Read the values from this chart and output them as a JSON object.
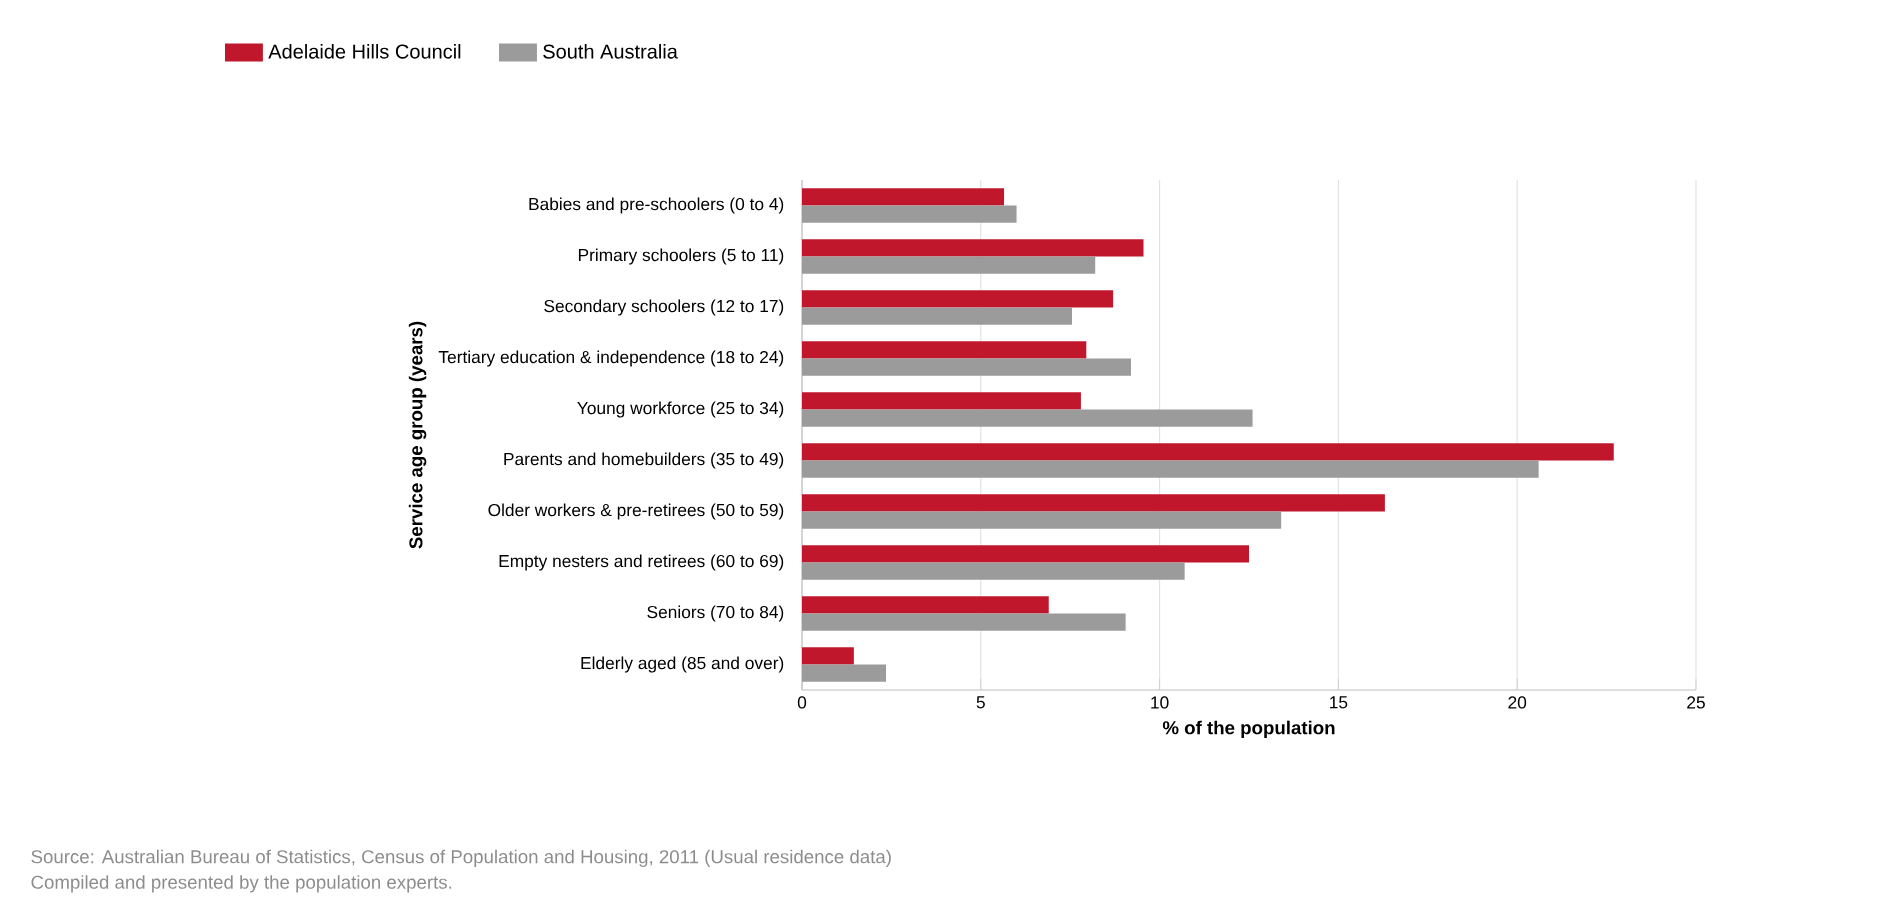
{
  "chart_data": {
    "type": "bar",
    "orientation": "horizontal",
    "xlabel": "% of the population",
    "ylabel": "Service age group (years)",
    "categories": [
      "Babies and pre-schoolers (0 to 4)",
      "Primary schoolers (5 to 11)",
      "Secondary schoolers (12 to 17)",
      "Tertiary education & independence (18 to 24)",
      "Young workforce (25 to 34)",
      "Parents and homebuilders (35 to 49)",
      "Older workers & pre-retirees (50 to 59)",
      "Empty nesters and retirees (60 to 69)",
      "Seniors (70 to 84)",
      "Elderly aged (85 and over)"
    ],
    "series": [
      {
        "name": "Adelaide Hills Council",
        "color": "#c0172c",
        "values": [
          5.65,
          9.55,
          8.7,
          7.95,
          7.8,
          22.7,
          16.3,
          12.5,
          6.9,
          1.45
        ]
      },
      {
        "name": "South Australia",
        "color": "#9b9b9b",
        "values": [
          6.0,
          8.2,
          7.55,
          9.2,
          12.6,
          20.6,
          13.4,
          10.7,
          9.05,
          2.35
        ]
      }
    ],
    "xlim": [
      0,
      25
    ],
    "xticks": [
      0,
      5,
      10,
      15,
      20,
      25
    ],
    "grid": "x",
    "legend": "top left",
    "annotations": [
      "Source: Australian Bureau of Statistics, Census of Population and Housing, 2011 (Usual residence data)",
      "Compiled and presented by the population experts."
    ]
  }
}
